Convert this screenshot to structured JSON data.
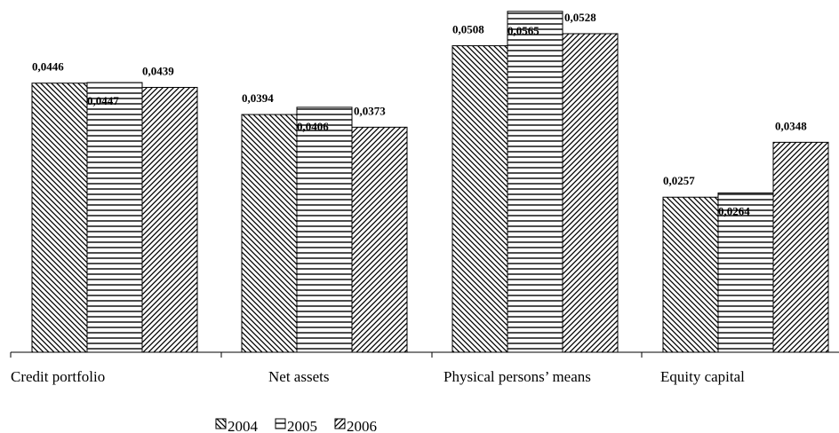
{
  "chart_data": {
    "type": "bar",
    "title": "",
    "xlabel": "",
    "ylabel": "",
    "ylim": [
      0,
      0.058
    ],
    "grid": false,
    "legend_position": "bottom-left",
    "categories": [
      "Credit portfolio",
      "Net assets",
      "Physical persons’ means",
      "Equity capital"
    ],
    "series": [
      {
        "name": "2004",
        "values": [
          0.0446,
          0.0394,
          0.0508,
          0.0257
        ],
        "labels": [
          "0,0446",
          "0,0394",
          "0,0508",
          "0,0257"
        ],
        "pattern": "diagonal-backslash"
      },
      {
        "name": "2005",
        "values": [
          0.0447,
          0.0406,
          0.0565,
          0.0264
        ],
        "labels": [
          "0,0447",
          "0,0406",
          "0,0565",
          "0,0264"
        ],
        "pattern": "horizontal"
      },
      {
        "name": "2006",
        "values": [
          0.0439,
          0.0373,
          0.0528,
          0.0348
        ],
        "labels": [
          "0,0439",
          "0,0373",
          "0,0528",
          "0,0348"
        ],
        "pattern": "diagonal-slash"
      }
    ]
  }
}
